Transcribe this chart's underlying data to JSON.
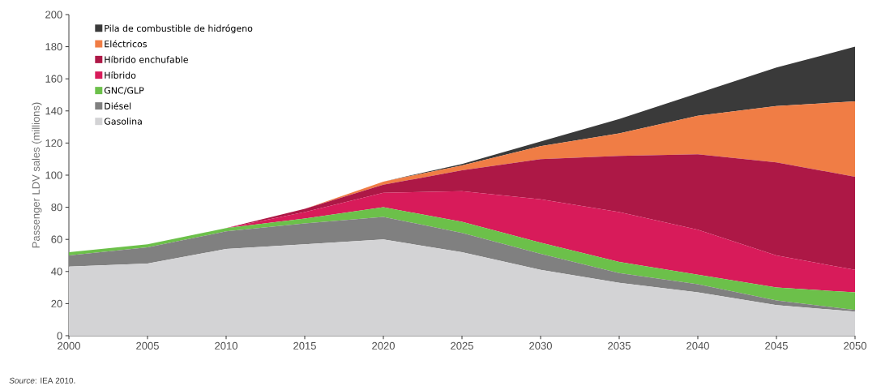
{
  "chart_data": {
    "type": "area",
    "stacked": true,
    "ylabel": "Passenger LDV sales (millions)",
    "annotations": [
      "*Source*: IEA 2010."
    ],
    "x": [
      2000,
      2005,
      2010,
      2015,
      2020,
      2025,
      2030,
      2035,
      2040,
      2045,
      2050
    ],
    "xlim": [
      2000,
      2050
    ],
    "xticks": [
      2000,
      2005,
      2010,
      2015,
      2020,
      2025,
      2030,
      2035,
      2040,
      2045,
      2050
    ],
    "ylim": [
      0,
      200
    ],
    "yticks": [
      0,
      20,
      40,
      60,
      80,
      100,
      120,
      140,
      160,
      180,
      200
    ],
    "legend": "top left",
    "grid": false,
    "series": [
      {
        "name": "Gasolina",
        "color": "#d3d3d5",
        "values": [
          43,
          45,
          54,
          57,
          60,
          52,
          41,
          33,
          27,
          19,
          15
        ]
      },
      {
        "name": "Diésel",
        "color": "#808080",
        "values": [
          7,
          10,
          11,
          13,
          14,
          12,
          10,
          6,
          5,
          3,
          1
        ]
      },
      {
        "name": "GNC/GLP",
        "color": "#6cc04a",
        "values": [
          2,
          2,
          2,
          3,
          6,
          7,
          7,
          7,
          6,
          8,
          11
        ]
      },
      {
        "name": "Híbrido",
        "color": "#d81b5a",
        "values": [
          0,
          0,
          0,
          4,
          9,
          19,
          27,
          31,
          28,
          20,
          14
        ]
      },
      {
        "name": "Híbrido enchufable",
        "color": "#ad1846",
        "values": [
          0,
          0,
          0,
          2,
          5,
          13,
          25,
          35,
          47,
          58,
          58
        ]
      },
      {
        "name": "Eléctricos",
        "color": "#f07d45",
        "values": [
          0,
          0,
          0,
          0,
          2,
          3,
          8,
          14,
          24,
          35,
          47
        ]
      },
      {
        "name": "Pila de combustible de hidrógeno",
        "color": "#3a3a3a",
        "values": [
          0,
          0,
          0,
          0,
          0,
          1,
          3,
          9,
          14,
          24,
          34
        ]
      }
    ]
  }
}
